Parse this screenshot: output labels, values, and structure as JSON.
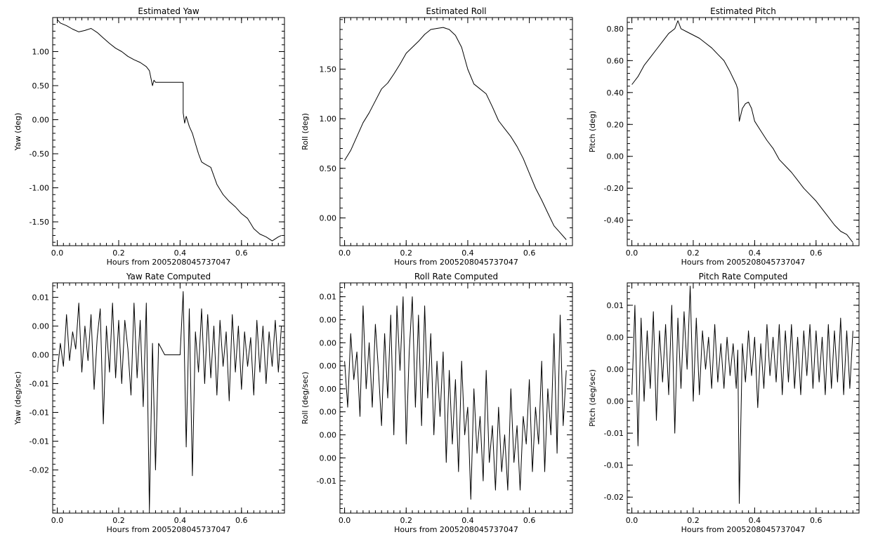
{
  "figure": {
    "background": "#ffffff",
    "line_color": "#000000"
  },
  "chart_data": [
    {
      "id": "yaw",
      "type": "line",
      "title": "Estimated Yaw",
      "xlabel": "Hours from 2005208045737047",
      "ylabel": "Yaw (deg)",
      "xlim": [
        -0.015,
        0.74
      ],
      "ylim": [
        -1.85,
        1.5
      ],
      "xticks": [
        0.0,
        0.2,
        0.4,
        0.6
      ],
      "xticklabels": [
        "0.0",
        "0.2",
        "0.4",
        "0.6"
      ],
      "yticks": [
        1.0,
        0.5,
        0.0,
        -0.5,
        -1.0,
        -1.5
      ],
      "yticklabels": [
        "1.00",
        "0.50",
        "0.00",
        "-0.50",
        "-1.00",
        "-1.50"
      ],
      "grid": false,
      "series": [
        {
          "x": [
            0.0,
            0.01,
            0.03,
            0.05,
            0.07,
            0.09,
            0.11,
            0.13,
            0.15,
            0.17,
            0.19,
            0.21,
            0.23,
            0.25,
            0.27,
            0.29,
            0.3,
            0.31,
            0.315,
            0.32,
            0.35,
            0.38,
            0.41,
            0.41,
            0.415,
            0.42,
            0.43,
            0.44,
            0.45,
            0.46,
            0.47,
            0.48,
            0.5,
            0.52,
            0.54,
            0.56,
            0.58,
            0.6,
            0.62,
            0.64,
            0.66,
            0.68,
            0.69,
            0.7,
            0.71,
            0.72,
            0.73
          ],
          "y": [
            1.47,
            1.42,
            1.38,
            1.33,
            1.29,
            1.31,
            1.34,
            1.28,
            1.2,
            1.12,
            1.05,
            1.0,
            0.93,
            0.88,
            0.84,
            0.78,
            0.72,
            0.5,
            0.58,
            0.55,
            0.55,
            0.55,
            0.55,
            0.1,
            -0.05,
            0.05,
            -0.1,
            -0.2,
            -0.35,
            -0.5,
            -0.62,
            -0.65,
            -0.7,
            -0.95,
            -1.1,
            -1.2,
            -1.28,
            -1.38,
            -1.45,
            -1.6,
            -1.68,
            -1.72,
            -1.75,
            -1.78,
            -1.75,
            -1.72,
            -1.7
          ]
        }
      ]
    },
    {
      "id": "roll",
      "type": "line",
      "title": "Estimated Roll",
      "xlabel": "Hours from 2005208045737047",
      "ylabel": "Roll (deg)",
      "xlim": [
        -0.015,
        0.74
      ],
      "ylim": [
        -0.28,
        2.02
      ],
      "xticks": [
        0.0,
        0.2,
        0.4,
        0.6
      ],
      "xticklabels": [
        "0.0",
        "0.2",
        "0.4",
        "0.6"
      ],
      "yticks": [
        1.5,
        1.0,
        0.5,
        0.0
      ],
      "yticklabels": [
        "1.50",
        "1.00",
        "0.50",
        "0.00"
      ],
      "grid": false,
      "series": [
        {
          "x": [
            0.0,
            0.02,
            0.04,
            0.06,
            0.08,
            0.1,
            0.12,
            0.14,
            0.16,
            0.18,
            0.2,
            0.22,
            0.24,
            0.26,
            0.28,
            0.3,
            0.32,
            0.34,
            0.36,
            0.38,
            0.4,
            0.42,
            0.44,
            0.46,
            0.48,
            0.5,
            0.52,
            0.54,
            0.56,
            0.58,
            0.6,
            0.62,
            0.64,
            0.66,
            0.68,
            0.7,
            0.72
          ],
          "y": [
            0.58,
            0.68,
            0.82,
            0.96,
            1.06,
            1.18,
            1.3,
            1.36,
            1.45,
            1.55,
            1.66,
            1.72,
            1.78,
            1.85,
            1.9,
            1.91,
            1.92,
            1.9,
            1.84,
            1.72,
            1.5,
            1.35,
            1.3,
            1.25,
            1.12,
            0.98,
            0.9,
            0.82,
            0.72,
            0.6,
            0.45,
            0.3,
            0.18,
            0.05,
            -0.08,
            -0.15,
            -0.22
          ]
        }
      ]
    },
    {
      "id": "pitch",
      "type": "line",
      "title": "Estimated Pitch",
      "xlabel": "Hours from 2005208045737047",
      "ylabel": "Pitch (deg)",
      "xlim": [
        -0.015,
        0.74
      ],
      "ylim": [
        -0.56,
        0.87
      ],
      "xticks": [
        0.0,
        0.2,
        0.4,
        0.6
      ],
      "xticklabels": [
        "0.0",
        "0.2",
        "0.4",
        "0.6"
      ],
      "yticks": [
        0.8,
        0.6,
        0.4,
        0.2,
        0.0,
        -0.2,
        -0.4
      ],
      "yticklabels": [
        "0.80",
        "0.60",
        "0.40",
        "0.20",
        "0.00",
        "-0.20",
        "-0.40"
      ],
      "grid": false,
      "series": [
        {
          "x": [
            0.0,
            0.02,
            0.04,
            0.06,
            0.08,
            0.1,
            0.12,
            0.14,
            0.15,
            0.16,
            0.18,
            0.2,
            0.22,
            0.24,
            0.26,
            0.28,
            0.3,
            0.32,
            0.34,
            0.345,
            0.35,
            0.36,
            0.37,
            0.38,
            0.39,
            0.4,
            0.42,
            0.44,
            0.46,
            0.48,
            0.5,
            0.52,
            0.54,
            0.56,
            0.58,
            0.6,
            0.62,
            0.64,
            0.66,
            0.68,
            0.7,
            0.72
          ],
          "y": [
            0.45,
            0.5,
            0.57,
            0.62,
            0.67,
            0.72,
            0.77,
            0.8,
            0.85,
            0.8,
            0.78,
            0.76,
            0.74,
            0.71,
            0.68,
            0.64,
            0.6,
            0.53,
            0.45,
            0.42,
            0.22,
            0.3,
            0.33,
            0.34,
            0.3,
            0.22,
            0.16,
            0.1,
            0.05,
            -0.02,
            -0.06,
            -0.1,
            -0.15,
            -0.2,
            -0.24,
            -0.28,
            -0.33,
            -0.38,
            -0.43,
            -0.47,
            -0.49,
            -0.54
          ]
        }
      ]
    },
    {
      "id": "yaw-rate",
      "type": "line",
      "title": "Yaw Rate Computed",
      "xlabel": "Hours from 2005208045737047",
      "ylabel": "Yaw (deg/sec)",
      "xlim": [
        -0.015,
        0.74
      ],
      "ylim": [
        -0.0275,
        0.0125
      ],
      "xticks": [
        0.0,
        0.2,
        0.4,
        0.6
      ],
      "xticklabels": [
        "0.0",
        "0.2",
        "0.4",
        "0.6"
      ],
      "yticks": [
        0.01,
        0.005,
        0.0,
        -0.005,
        -0.01,
        -0.015,
        -0.02
      ],
      "yticklabels": [
        "0.01",
        "0.00",
        "0.00",
        "-0.01",
        "-0.01",
        "-0.01",
        "-0.02"
      ],
      "grid": false,
      "series": [
        {
          "x": [
            0.0,
            0.01,
            0.02,
            0.03,
            0.04,
            0.05,
            0.06,
            0.07,
            0.08,
            0.09,
            0.1,
            0.11,
            0.12,
            0.13,
            0.14,
            0.15,
            0.16,
            0.17,
            0.18,
            0.19,
            0.2,
            0.21,
            0.22,
            0.23,
            0.24,
            0.25,
            0.26,
            0.27,
            0.28,
            0.29,
            0.3,
            0.31,
            0.32,
            0.33,
            0.35,
            0.4,
            0.41,
            0.42,
            0.43,
            0.44,
            0.45,
            0.46,
            0.47,
            0.48,
            0.49,
            0.5,
            0.51,
            0.52,
            0.53,
            0.54,
            0.55,
            0.56,
            0.57,
            0.58,
            0.59,
            0.6,
            0.61,
            0.62,
            0.63,
            0.64,
            0.65,
            0.66,
            0.67,
            0.68,
            0.69,
            0.7,
            0.71,
            0.72,
            0.73
          ],
          "y": [
            -0.003,
            0.002,
            -0.002,
            0.007,
            -0.001,
            0.004,
            0.001,
            0.009,
            -0.003,
            0.005,
            -0.001,
            0.007,
            -0.006,
            0.003,
            0.008,
            -0.012,
            0.005,
            -0.003,
            0.009,
            -0.004,
            0.006,
            -0.005,
            0.006,
            0.001,
            -0.007,
            0.009,
            -0.004,
            0.006,
            -0.009,
            0.009,
            -0.027,
            0.002,
            -0.02,
            0.002,
            0.0,
            0.0,
            0.011,
            -0.016,
            0.008,
            -0.021,
            0.004,
            -0.003,
            0.008,
            -0.005,
            0.007,
            -0.004,
            0.005,
            -0.007,
            0.006,
            -0.002,
            0.004,
            -0.008,
            0.007,
            -0.003,
            0.005,
            -0.006,
            0.004,
            -0.002,
            0.003,
            -0.007,
            0.006,
            -0.003,
            0.005,
            -0.005,
            0.004,
            -0.002,
            0.006,
            -0.003,
            0.005
          ]
        }
      ]
    },
    {
      "id": "roll-rate",
      "type": "line",
      "title": "Roll Rate Computed",
      "xlabel": "Hours from 2005208045737047",
      "ylabel": "Roll (deg/sec)",
      "xlim": [
        -0.015,
        0.74
      ],
      "ylim": [
        -0.0135,
        0.0115
      ],
      "xticks": [
        0.0,
        0.2,
        0.4,
        0.6
      ],
      "xticklabels": [
        "0.0",
        "0.2",
        "0.4",
        "0.6"
      ],
      "yticks": [
        0.01,
        0.0075,
        0.005,
        0.0025,
        0.0,
        -0.0025,
        -0.005,
        -0.0075,
        -0.01
      ],
      "yticklabels": [
        "0.01",
        "0.00",
        "0.00",
        "0.00",
        "0.00",
        "0.00",
        "0.00",
        "0.00",
        "-0.01"
      ],
      "grid": false,
      "series": [
        {
          "x": [
            0.0,
            0.01,
            0.02,
            0.03,
            0.04,
            0.05,
            0.06,
            0.07,
            0.08,
            0.09,
            0.1,
            0.11,
            0.12,
            0.13,
            0.14,
            0.15,
            0.16,
            0.17,
            0.18,
            0.19,
            0.2,
            0.21,
            0.22,
            0.23,
            0.24,
            0.25,
            0.26,
            0.27,
            0.28,
            0.29,
            0.3,
            0.31,
            0.32,
            0.33,
            0.34,
            0.35,
            0.36,
            0.37,
            0.38,
            0.39,
            0.4,
            0.41,
            0.42,
            0.43,
            0.44,
            0.45,
            0.46,
            0.47,
            0.48,
            0.49,
            0.5,
            0.51,
            0.52,
            0.53,
            0.54,
            0.55,
            0.56,
            0.57,
            0.58,
            0.59,
            0.6,
            0.61,
            0.62,
            0.63,
            0.64,
            0.65,
            0.66,
            0.67,
            0.68,
            0.69,
            0.7,
            0.71,
            0.72
          ],
          "y": [
            0.003,
            -0.002,
            0.006,
            0.001,
            0.004,
            -0.003,
            0.009,
            0.0,
            0.005,
            -0.002,
            0.007,
            0.002,
            -0.004,
            0.006,
            -0.001,
            0.008,
            -0.005,
            0.009,
            0.002,
            0.01,
            -0.006,
            0.004,
            0.01,
            -0.002,
            0.008,
            -0.004,
            0.009,
            -0.001,
            0.006,
            -0.005,
            0.003,
            -0.003,
            0.004,
            -0.008,
            0.002,
            -0.006,
            0.001,
            -0.009,
            0.003,
            -0.005,
            -0.002,
            -0.012,
            0.0,
            -0.007,
            -0.003,
            -0.01,
            0.002,
            -0.008,
            -0.004,
            -0.011,
            -0.002,
            -0.009,
            -0.005,
            -0.011,
            0.0,
            -0.008,
            -0.004,
            -0.011,
            -0.003,
            -0.006,
            0.001,
            -0.009,
            -0.002,
            -0.006,
            0.003,
            -0.009,
            0.0,
            -0.005,
            0.006,
            -0.007,
            0.008,
            -0.004,
            0.002
          ]
        }
      ]
    },
    {
      "id": "pitch-rate",
      "type": "line",
      "title": "Pitch Rate Computed",
      "xlabel": "Hours from 2005208045737047",
      "ylabel": "Pitch (deg/sec)",
      "xlim": [
        -0.015,
        0.74
      ],
      "ylim": [
        -0.0225,
        0.0135
      ],
      "xticks": [
        0.0,
        0.2,
        0.4,
        0.6
      ],
      "xticklabels": [
        "0.0",
        "0.2",
        "0.4",
        "0.6"
      ],
      "yticks": [
        0.01,
        0.005,
        0.0,
        -0.005,
        -0.01,
        -0.015,
        -0.02
      ],
      "yticklabels": [
        "0.01",
        "0.00",
        "0.00",
        "0.00",
        "-0.01",
        "-0.01",
        "-0.02"
      ],
      "grid": false,
      "series": [
        {
          "x": [
            0.0,
            0.01,
            0.02,
            0.03,
            0.04,
            0.05,
            0.06,
            0.07,
            0.08,
            0.09,
            0.1,
            0.11,
            0.12,
            0.13,
            0.14,
            0.15,
            0.16,
            0.17,
            0.18,
            0.19,
            0.2,
            0.21,
            0.22,
            0.23,
            0.24,
            0.25,
            0.26,
            0.27,
            0.28,
            0.29,
            0.3,
            0.31,
            0.32,
            0.33,
            0.34,
            0.345,
            0.35,
            0.36,
            0.37,
            0.38,
            0.39,
            0.4,
            0.41,
            0.42,
            0.43,
            0.44,
            0.45,
            0.46,
            0.47,
            0.48,
            0.49,
            0.5,
            0.51,
            0.52,
            0.53,
            0.54,
            0.55,
            0.56,
            0.57,
            0.58,
            0.59,
            0.6,
            0.61,
            0.62,
            0.63,
            0.64,
            0.65,
            0.66,
            0.67,
            0.68,
            0.69,
            0.7,
            0.71,
            0.72
          ],
          "y": [
            -0.004,
            0.01,
            -0.012,
            0.008,
            -0.005,
            0.006,
            -0.003,
            0.009,
            -0.008,
            0.006,
            -0.002,
            0.007,
            -0.004,
            0.01,
            -0.01,
            0.008,
            -0.003,
            0.009,
            0.0,
            0.013,
            -0.005,
            0.008,
            -0.004,
            0.006,
            0.0,
            0.005,
            -0.003,
            0.007,
            -0.002,
            0.004,
            -0.003,
            0.005,
            -0.001,
            0.004,
            -0.003,
            0.003,
            -0.021,
            0.004,
            -0.002,
            0.006,
            -0.001,
            0.005,
            -0.006,
            0.004,
            -0.003,
            0.007,
            -0.001,
            0.005,
            -0.002,
            0.007,
            -0.004,
            0.006,
            -0.002,
            0.007,
            -0.003,
            0.005,
            -0.004,
            0.006,
            -0.001,
            0.007,
            -0.003,
            0.006,
            -0.002,
            0.005,
            -0.004,
            0.007,
            -0.003,
            0.006,
            -0.002,
            0.008,
            -0.004,
            0.006,
            -0.003,
            0.006
          ]
        }
      ]
    }
  ]
}
